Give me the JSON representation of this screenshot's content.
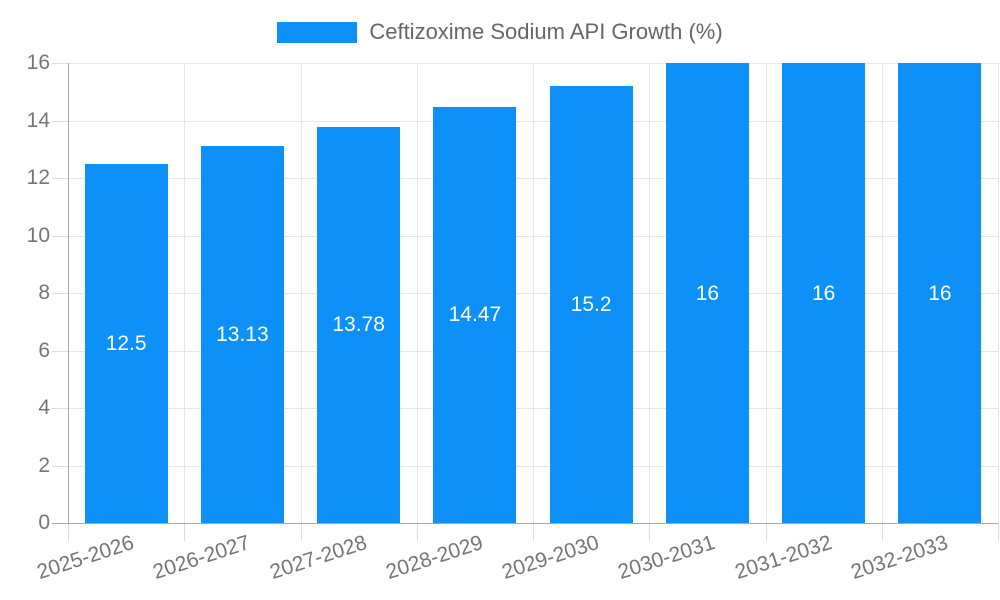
{
  "legend": {
    "label": "Ceftizoxime Sodium API Growth (%)"
  },
  "chart_data": {
    "type": "bar",
    "title": "",
    "xlabel": "",
    "ylabel": "",
    "categories": [
      "2025-2026",
      "2026-2027",
      "2027-2028",
      "2028-2029",
      "2029-2030",
      "2030-2031",
      "2031-2032",
      "2032-2033"
    ],
    "series": [
      {
        "name": "Ceftizoxime Sodium API Growth (%)",
        "values": [
          12.5,
          13.13,
          13.78,
          14.47,
          15.2,
          16,
          16,
          16
        ]
      }
    ],
    "value_labels": [
      "12.5",
      "13.13",
      "13.78",
      "14.47",
      "15.2",
      "16",
      "16",
      "16"
    ],
    "ylim": [
      0,
      16
    ],
    "yticks": [
      0,
      2,
      4,
      6,
      8,
      10,
      12,
      14,
      16
    ],
    "grid": true,
    "legend_position": "top-center",
    "x_label_rotation_deg": -18,
    "colors": {
      "bar": "#0d90f8",
      "grid": "#e6e6e6",
      "axis_line": "#a6a6a6",
      "tick": "#dcdcdc",
      "axis_text": "#757575",
      "legend_text": "#666666",
      "bar_label_text": "#ffffff",
      "background": "#ffffff"
    }
  }
}
